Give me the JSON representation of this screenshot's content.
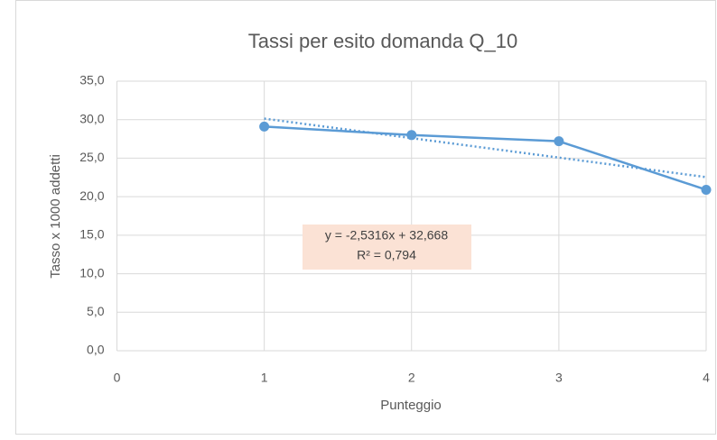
{
  "chart_data": {
    "type": "scatter",
    "title": "Tassi per esito domanda Q_10",
    "x_label": "Punteggio",
    "y_label": "Tasso x 1000 addetti",
    "x": [
      1,
      2,
      3,
      4
    ],
    "series": [
      {
        "color": "#5b9bd5",
        "values": [
          29.1,
          28.0,
          27.2,
          20.9
        ]
      }
    ],
    "xlim": [
      0,
      4
    ],
    "xticks": [
      0,
      1,
      2,
      3,
      4
    ],
    "ylim": [
      0,
      35
    ],
    "yticks": [
      {
        "value": 0,
        "label": "0,0"
      },
      {
        "value": 5,
        "label": "5,0"
      },
      {
        "value": 10,
        "label": "10,0"
      },
      {
        "value": 15,
        "label": "15,0"
      },
      {
        "value": 20,
        "label": "20,0"
      },
      {
        "value": 25,
        "label": "25,0"
      },
      {
        "value": 30,
        "label": "30,0"
      },
      {
        "value": 35,
        "label": "35,0"
      }
    ],
    "grid": true,
    "trendline": {
      "slope": -2.5316,
      "intercept": 32.668,
      "color": "#5b9bd5",
      "labels": [
        "y = -2,5316x + 32,668",
        "R² = 0,794"
      ]
    }
  }
}
